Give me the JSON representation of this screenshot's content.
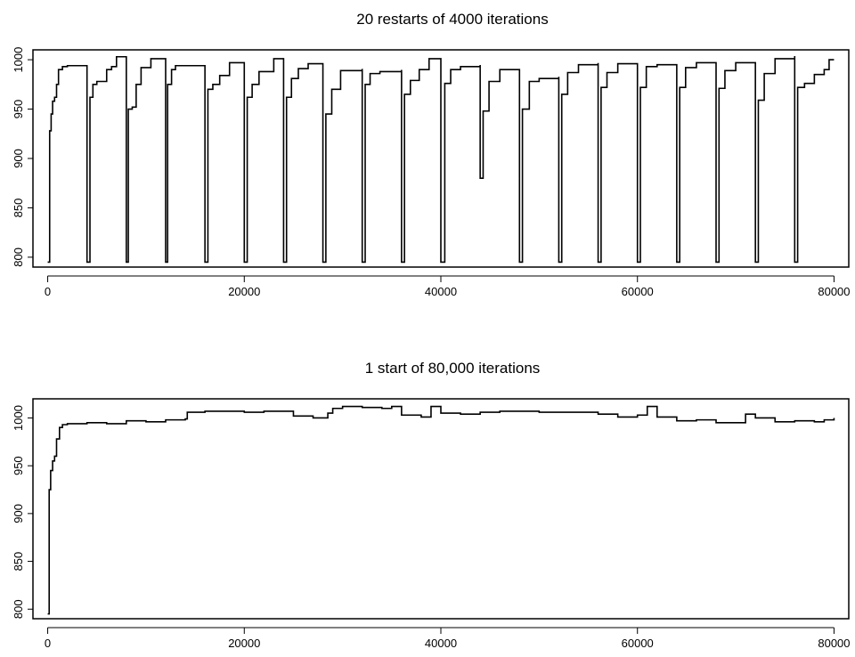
{
  "colors": {
    "line": "#000000",
    "background": "#ffffff"
  },
  "chart_data": [
    {
      "type": "line",
      "title": "20 restarts of 4000 iterations",
      "xlabel": "",
      "ylabel": "",
      "xlim": [
        -1500,
        81500
      ],
      "ylim": [
        790,
        1010
      ],
      "x_ticks": [
        0,
        20000,
        40000,
        60000,
        80000
      ],
      "y_ticks": [
        800,
        850,
        900,
        950,
        1000
      ],
      "grid": false,
      "series": [
        {
          "x": [
            0,
            200,
            350,
            500,
            700,
            900,
            1100,
            1500,
            2000,
            3999,
            4000,
            4300,
            4600,
            5000,
            6000,
            6500,
            7000,
            7999,
            8000,
            8200,
            8600,
            9000,
            9500,
            10500,
            11999,
            12000,
            12200,
            12600,
            13000,
            15999,
            16000,
            16300,
            16800,
            17500,
            18500,
            19999,
            20000,
            20300,
            20800,
            21500,
            23000,
            23999,
            24000,
            24300,
            24800,
            25500,
            26500,
            27999,
            28000,
            28300,
            28900,
            29800,
            31999,
            32000,
            32300,
            32800,
            33800,
            35999,
            36000,
            36300,
            36900,
            37800,
            38800,
            39999,
            40000,
            40400,
            41000,
            42000,
            43999,
            44000,
            44300,
            44900,
            46000,
            47999,
            48000,
            48300,
            49000,
            50000,
            51999,
            52000,
            52300,
            52900,
            54000,
            55999,
            56000,
            56300,
            56900,
            58000,
            59999,
            60000,
            60300,
            60900,
            62000,
            63999,
            64000,
            64300,
            64900,
            66000,
            67999,
            68000,
            68300,
            68900,
            70000,
            71999,
            72000,
            72300,
            72900,
            74000,
            75999,
            76000,
            76300,
            77000,
            78000,
            79000,
            79500,
            80000
          ],
          "y": [
            795,
            928,
            945,
            958,
            962,
            975,
            990,
            993,
            994,
            994,
            795,
            962,
            975,
            978,
            990,
            993,
            1003,
            1002,
            795,
            950,
            952,
            975,
            992,
            1001,
            1001,
            795,
            975,
            990,
            994,
            994,
            795,
            970,
            975,
            984,
            997,
            997,
            795,
            962,
            975,
            988,
            1001,
            1000,
            795,
            962,
            981,
            991,
            996,
            993,
            795,
            945,
            970,
            989,
            990,
            795,
            975,
            986,
            988,
            989,
            795,
            965,
            979,
            990,
            1001,
            1001,
            795,
            976,
            990,
            993,
            994,
            880,
            948,
            978,
            990,
            990,
            795,
            950,
            978,
            981,
            982,
            795,
            965,
            987,
            995,
            996,
            795,
            972,
            987,
            996,
            996,
            795,
            972,
            993,
            995,
            995,
            795,
            972,
            992,
            997,
            997,
            795,
            971,
            989,
            997,
            997,
            795,
            959,
            986,
            1001,
            1003,
            795,
            972,
            976,
            985,
            990,
            1000,
            1000
          ]
        }
      ]
    },
    {
      "type": "line",
      "title": "1 start of 80,000 iterations",
      "xlabel": "",
      "ylabel": "",
      "xlim": [
        -1500,
        81500
      ],
      "ylim": [
        790,
        1020
      ],
      "x_ticks": [
        0,
        20000,
        40000,
        60000,
        80000
      ],
      "y_ticks": [
        800,
        850,
        900,
        950,
        1000
      ],
      "grid": false,
      "series": [
        {
          "x": [
            0,
            150,
            300,
            500,
            700,
            900,
            1200,
            1500,
            2000,
            4000,
            6000,
            8000,
            10000,
            12000,
            14000,
            14200,
            16000,
            18000,
            20000,
            22000,
            24000,
            25000,
            27000,
            28500,
            29000,
            30000,
            32000,
            34000,
            35000,
            36000,
            38000,
            39000,
            40000,
            42000,
            44000,
            46000,
            48000,
            50000,
            52000,
            54000,
            56000,
            58000,
            60000,
            61000,
            62000,
            64000,
            66000,
            68000,
            70000,
            71000,
            72000,
            74000,
            76000,
            78000,
            79000,
            80000
          ],
          "y": [
            795,
            925,
            945,
            955,
            960,
            978,
            990,
            993,
            994,
            995,
            994,
            997,
            996,
            998,
            999,
            1006,
            1007,
            1007,
            1006,
            1007,
            1007,
            1002,
            1000,
            1005,
            1010,
            1012,
            1011,
            1010,
            1012,
            1003,
            1001,
            1012,
            1005,
            1004,
            1006,
            1007,
            1007,
            1006,
            1006,
            1006,
            1004,
            1001,
            1003,
            1012,
            1001,
            997,
            998,
            995,
            995,
            1004,
            1000,
            996,
            997,
            996,
            998,
            1000
          ]
        }
      ]
    }
  ]
}
